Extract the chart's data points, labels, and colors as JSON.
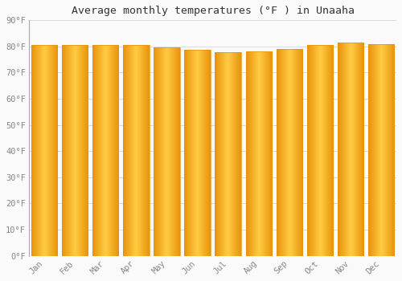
{
  "title": "Average monthly temperatures (°F ) in Unaaha",
  "months": [
    "Jan",
    "Feb",
    "Mar",
    "Apr",
    "May",
    "Jun",
    "Jul",
    "Aug",
    "Sep",
    "Oct",
    "Nov",
    "Dec"
  ],
  "values": [
    80.6,
    80.6,
    80.6,
    80.6,
    79.7,
    78.8,
    77.9,
    78.1,
    79.0,
    80.6,
    81.5,
    80.8
  ],
  "bar_color_center": "#FFCC44",
  "bar_color_edge": "#E8920A",
  "background_color": "#FAFAFA",
  "grid_color": "#DDDDDD",
  "tick_label_color": "#888888",
  "title_color": "#333333",
  "ylim": [
    0,
    90
  ],
  "yticks": [
    0,
    10,
    20,
    30,
    40,
    50,
    60,
    70,
    80,
    90
  ],
  "ytick_labels": [
    "0°F",
    "10°F",
    "20°F",
    "30°F",
    "40°F",
    "50°F",
    "60°F",
    "70°F",
    "80°F",
    "90°F"
  ],
  "bar_width": 0.85,
  "figsize": [
    5.0,
    3.5
  ],
  "dpi": 100
}
